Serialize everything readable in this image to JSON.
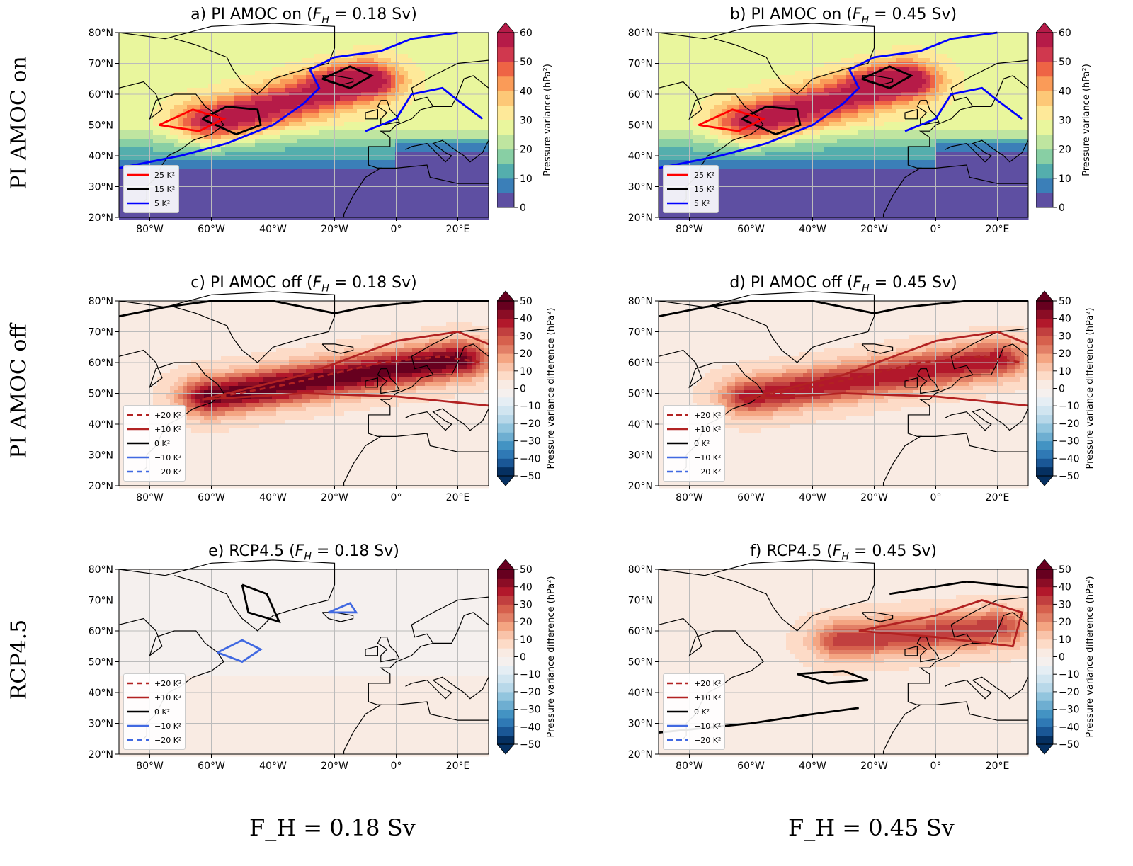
{
  "row_labels": [
    "PI AMOC on",
    "PI AMOC off",
    "RCP4.5"
  ],
  "column_labels": [
    "F_H = 0.18 Sv",
    "F_H = 0.45 Sv"
  ],
  "chart_data": {
    "type": "heatmap",
    "map_extent": {
      "lon": [
        -90,
        30
      ],
      "lat": [
        20,
        80
      ]
    },
    "lon_ticks": [
      "80°W",
      "60°W",
      "40°W",
      "20°W",
      "0°",
      "20°E"
    ],
    "lat_ticks": [
      "20°N",
      "30°N",
      "40°N",
      "50°N",
      "60°N",
      "70°N",
      "80°N"
    ],
    "grid": true,
    "colorbars": {
      "variance": {
        "label": "Pressure variance (hPa²)",
        "range": [
          0,
          60
        ],
        "ticks": [
          "0",
          "10",
          "20",
          "30",
          "40",
          "50",
          "60"
        ],
        "colormap": "Spectral_r",
        "extend": "max"
      },
      "difference": {
        "label": "Pressure variance difference (hPa²)",
        "range": [
          -50,
          50
        ],
        "ticks": [
          "50",
          "40",
          "30",
          "20",
          "10",
          "0",
          "−10",
          "−20",
          "−30",
          "−40",
          "−50"
        ],
        "colormap": "RdBu_r",
        "extend": "both"
      }
    },
    "legends": {
      "variance": [
        {
          "label": "25 K²",
          "color": "#ff0000",
          "dash": false
        },
        {
          "label": "15 K²",
          "color": "#000000",
          "dash": false
        },
        {
          "label": "5 K²",
          "color": "#0000ff",
          "dash": false
        }
      ],
      "difference": [
        {
          "label": "+20 K²",
          "color": "#b22222",
          "dash": true
        },
        {
          "label": "+10 K²",
          "color": "#b22222",
          "dash": false
        },
        {
          "label": "0 K²",
          "color": "#000000",
          "dash": false
        },
        {
          "label": "−10 K²",
          "color": "#4169e1",
          "dash": false
        },
        {
          "label": "−20 K²",
          "color": "#4169e1",
          "dash": true
        }
      ]
    },
    "panels": [
      {
        "id": "a",
        "title": "a) PI AMOC on (F_H = 0.18 Sv)",
        "t1": "a) PI AMOC on (",
        "t2": " = 0.18 Sv)",
        "field": "variance",
        "max_value": 60
      },
      {
        "id": "b",
        "title": "b) PI AMOC on (F_H = 0.45 Sv)",
        "t1": "b) PI AMOC on (",
        "t2": " = 0.45 Sv)",
        "field": "variance",
        "max_value": 60
      },
      {
        "id": "c",
        "title": "c) PI AMOC off (F_H = 0.18 Sv)",
        "t1": "c) PI AMOC off (",
        "t2": " = 0.18 Sv)",
        "field": "difference",
        "max_value": 45
      },
      {
        "id": "d",
        "title": "d) PI AMOC off (F_H = 0.45 Sv)",
        "t1": "d) PI AMOC off (",
        "t2": " = 0.45 Sv)",
        "field": "difference",
        "max_value": 35
      },
      {
        "id": "e",
        "title": "e) RCP4.5 (F_H = 0.18 Sv)",
        "t1": "e) RCP4.5 (",
        "t2": " = 0.18 Sv)",
        "field": "difference",
        "max_value": -5
      },
      {
        "id": "f",
        "title": "f) RCP4.5 (F_H = 0.45 Sv)",
        "t1": "f) RCP4.5 (",
        "t2": " = 0.45 Sv)",
        "field": "difference",
        "max_value": 30
      }
    ]
  }
}
